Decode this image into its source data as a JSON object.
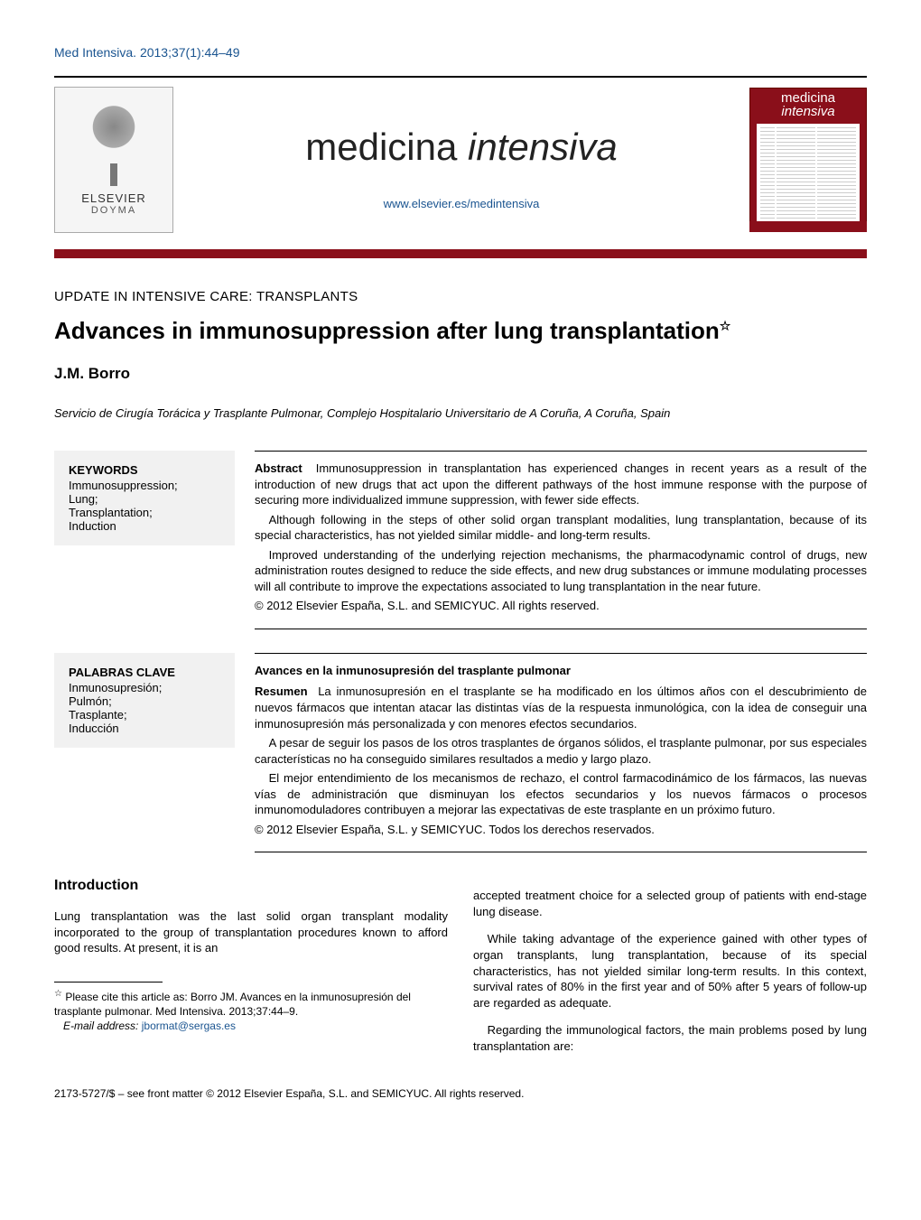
{
  "colors": {
    "link": "#1a5490",
    "brand_red": "#8a0f1a",
    "kw_bg": "#f1f1f1",
    "text": "#000000",
    "background": "#ffffff"
  },
  "header": {
    "citation": "Med Intensiva. 2013;37(1):44–49"
  },
  "masthead": {
    "publisher_name": "ELSEVIER",
    "publisher_sub": "DOYMA",
    "journal_title_a": "medicina ",
    "journal_title_b": "intensiva",
    "journal_url": "www.elsevier.es/medintensiva",
    "cover_title_a": "medicina",
    "cover_title_b": "intensiva"
  },
  "article": {
    "section_label": "UPDATE IN INTENSIVE CARE: TRANSPLANTS",
    "title": "Advances in immunosuppression after lung transplantation",
    "title_marker": "☆",
    "authors": "J.M. Borro",
    "affiliation": "Servicio de Cirugía Torácica y Trasplante Pulmonar, Complejo Hospitalario Universitario de A Coruña, A Coruña, Spain"
  },
  "keywords_en": {
    "heading": "KEYWORDS",
    "items": "Immunosuppression;\nLung;\nTransplantation;\nInduction"
  },
  "abstract_en": {
    "label": "Abstract",
    "p1": "Immunosuppression in transplantation has experienced changes in recent years as a result of the introduction of new drugs that act upon the different pathways of the host immune response with the purpose of securing more individualized immune suppression, with fewer side effects.",
    "p2": "Although following in the steps of other solid organ transplant modalities, lung transplantation, because of its special characteristics, has not yielded similar middle- and long-term results.",
    "p3": "Improved understanding of the underlying rejection mechanisms, the pharmacodynamic control of drugs, new administration routes designed to reduce the side effects, and new drug substances or immune modulating processes will all contribute to improve the expectations associated to lung transplantation in the near future.",
    "copyright": "© 2012 Elsevier España, S.L. and SEMICYUC. All rights reserved."
  },
  "keywords_es": {
    "heading": "PALABRAS CLAVE",
    "items": "Inmunosupresión;\nPulmón;\nTrasplante;\nInducción"
  },
  "abstract_es": {
    "title": "Avances en la inmunosupresión del trasplante pulmonar",
    "label": "Resumen",
    "p1": "La inmunosupresión en el trasplante se ha modificado en los últimos años con el descubrimiento de nuevos fármacos que intentan atacar las distintas vías de la respuesta inmunológica, con la idea de conseguir una inmunosupresión más personalizada y con menores efectos secundarios.",
    "p2": "A pesar de seguir los pasos de los otros trasplantes de órganos sólidos, el trasplante pulmonar, por sus especiales características no ha conseguido similares resultados a medio y largo plazo.",
    "p3": "El mejor entendimiento de los mecanismos de rechazo, el control farmacodinámico de los fármacos, las nuevas vías de administración que disminuyan los efectos secundarios y los nuevos fármacos o procesos inmunomoduladores contribuyen a mejorar las expectativas de este trasplante en un próximo futuro.",
    "copyright": "© 2012 Elsevier España, S.L. y SEMICYUC. Todos los derechos reservados."
  },
  "body": {
    "intro_heading": "Introduction",
    "col1_p1": "Lung transplantation was the last solid organ transplant modality incorporated to the group of transplantation procedures known to afford good results. At present, it is an",
    "col2_p1": "accepted treatment choice for a selected group of patients with end-stage lung disease.",
    "col2_p2": "While taking advantage of the experience gained with other types of organ transplants, lung transplantation, because of its special characteristics, has not yielded similar long-term results. In this context, survival rates of 80% in the first year and of 50% after 5 years of follow-up are regarded as adequate.",
    "col2_p3": "Regarding the immunological factors, the main problems posed by lung transplantation are:"
  },
  "footnotes": {
    "cite_prefix": "Please cite this article as: Borro JM. Avances en la inmunosupresión del trasplante pulmonar. Med Intensiva. 2013;37:44–9.",
    "email_label": "E-mail address:",
    "email": "jbormat@sergas.es"
  },
  "footer": {
    "line": "2173-5727/$ – see front matter © 2012 Elsevier España, S.L. and SEMICYUC. All rights reserved."
  }
}
